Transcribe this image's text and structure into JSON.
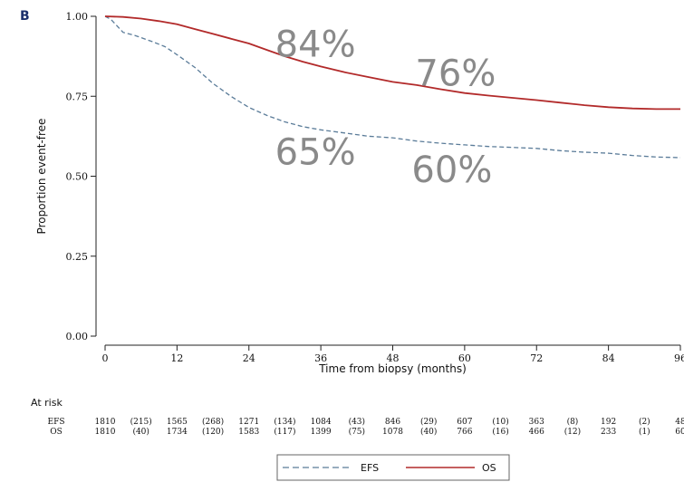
{
  "chart_data": {
    "type": "line",
    "panel_label": "B",
    "title": "",
    "xlabel": "Time from biopsy (months)",
    "ylabel": "Proportion event-free",
    "xlim": [
      0,
      96
    ],
    "ylim": [
      0,
      1
    ],
    "x_ticks": [
      0,
      12,
      24,
      36,
      48,
      60,
      72,
      84,
      96
    ],
    "x_tick_labels": [
      "0",
      "12",
      "24",
      "36",
      "48",
      "60",
      "72",
      "84",
      "96"
    ],
    "y_ticks": [
      0,
      0.25,
      0.5,
      0.75,
      1.0
    ],
    "y_tick_labels": [
      "0.00",
      "0.25",
      "0.50",
      "0.75",
      "1.00"
    ],
    "grid": false,
    "legend_position": "bottom-center",
    "series": [
      {
        "name": "EFS",
        "color": "#5b7c99",
        "style": "dashed",
        "x": [
          0,
          1,
          2,
          3,
          5,
          8,
          10,
          12,
          15,
          18,
          21,
          24,
          27,
          30,
          33,
          36,
          40,
          44,
          48,
          52,
          56,
          60,
          64,
          68,
          72,
          76,
          80,
          84,
          88,
          92,
          96
        ],
        "y": [
          1.0,
          0.99,
          0.97,
          0.95,
          0.94,
          0.92,
          0.905,
          0.88,
          0.84,
          0.79,
          0.75,
          0.715,
          0.69,
          0.67,
          0.655,
          0.645,
          0.635,
          0.625,
          0.62,
          0.61,
          0.603,
          0.598,
          0.593,
          0.59,
          0.587,
          0.58,
          0.575,
          0.572,
          0.565,
          0.56,
          0.558
        ]
      },
      {
        "name": "OS",
        "color": "#b22a2a",
        "style": "solid",
        "x": [
          0,
          3,
          6,
          9,
          12,
          15,
          18,
          21,
          24,
          27,
          30,
          33,
          36,
          40,
          44,
          48,
          52,
          56,
          60,
          64,
          68,
          72,
          76,
          80,
          84,
          88,
          92,
          96
        ],
        "y": [
          1.0,
          0.998,
          0.993,
          0.985,
          0.975,
          0.96,
          0.945,
          0.93,
          0.915,
          0.895,
          0.875,
          0.858,
          0.843,
          0.825,
          0.81,
          0.795,
          0.785,
          0.772,
          0.76,
          0.752,
          0.745,
          0.738,
          0.73,
          0.722,
          0.716,
          0.712,
          0.71,
          0.71
        ]
      }
    ],
    "annotations": [
      {
        "text": "84%",
        "x": 36,
        "y": 0.84
      },
      {
        "text": "76%",
        "x": 60,
        "y": 0.76
      },
      {
        "text": "65%",
        "x": 36,
        "y": 0.65
      },
      {
        "text": "60%",
        "x": 60,
        "y": 0.6
      }
    ],
    "at_risk": {
      "heading": "At risk",
      "rows": [
        {
          "label": "EFS",
          "values": [
            "1810",
            "(215)",
            "1565",
            "(268)",
            "1271",
            "(134)",
            "1084",
            "(43)",
            "846",
            "(29)",
            "607",
            "(10)",
            "363",
            "(8)",
            "192",
            "(2)",
            "48"
          ]
        },
        {
          "label": "OS",
          "values": [
            "1810",
            "(40)",
            "1734",
            "(120)",
            "1583",
            "(117)",
            "1399",
            "(75)",
            "1078",
            "(40)",
            "766",
            "(16)",
            "466",
            "(12)",
            "233",
            "(1)",
            "60"
          ]
        }
      ]
    }
  }
}
